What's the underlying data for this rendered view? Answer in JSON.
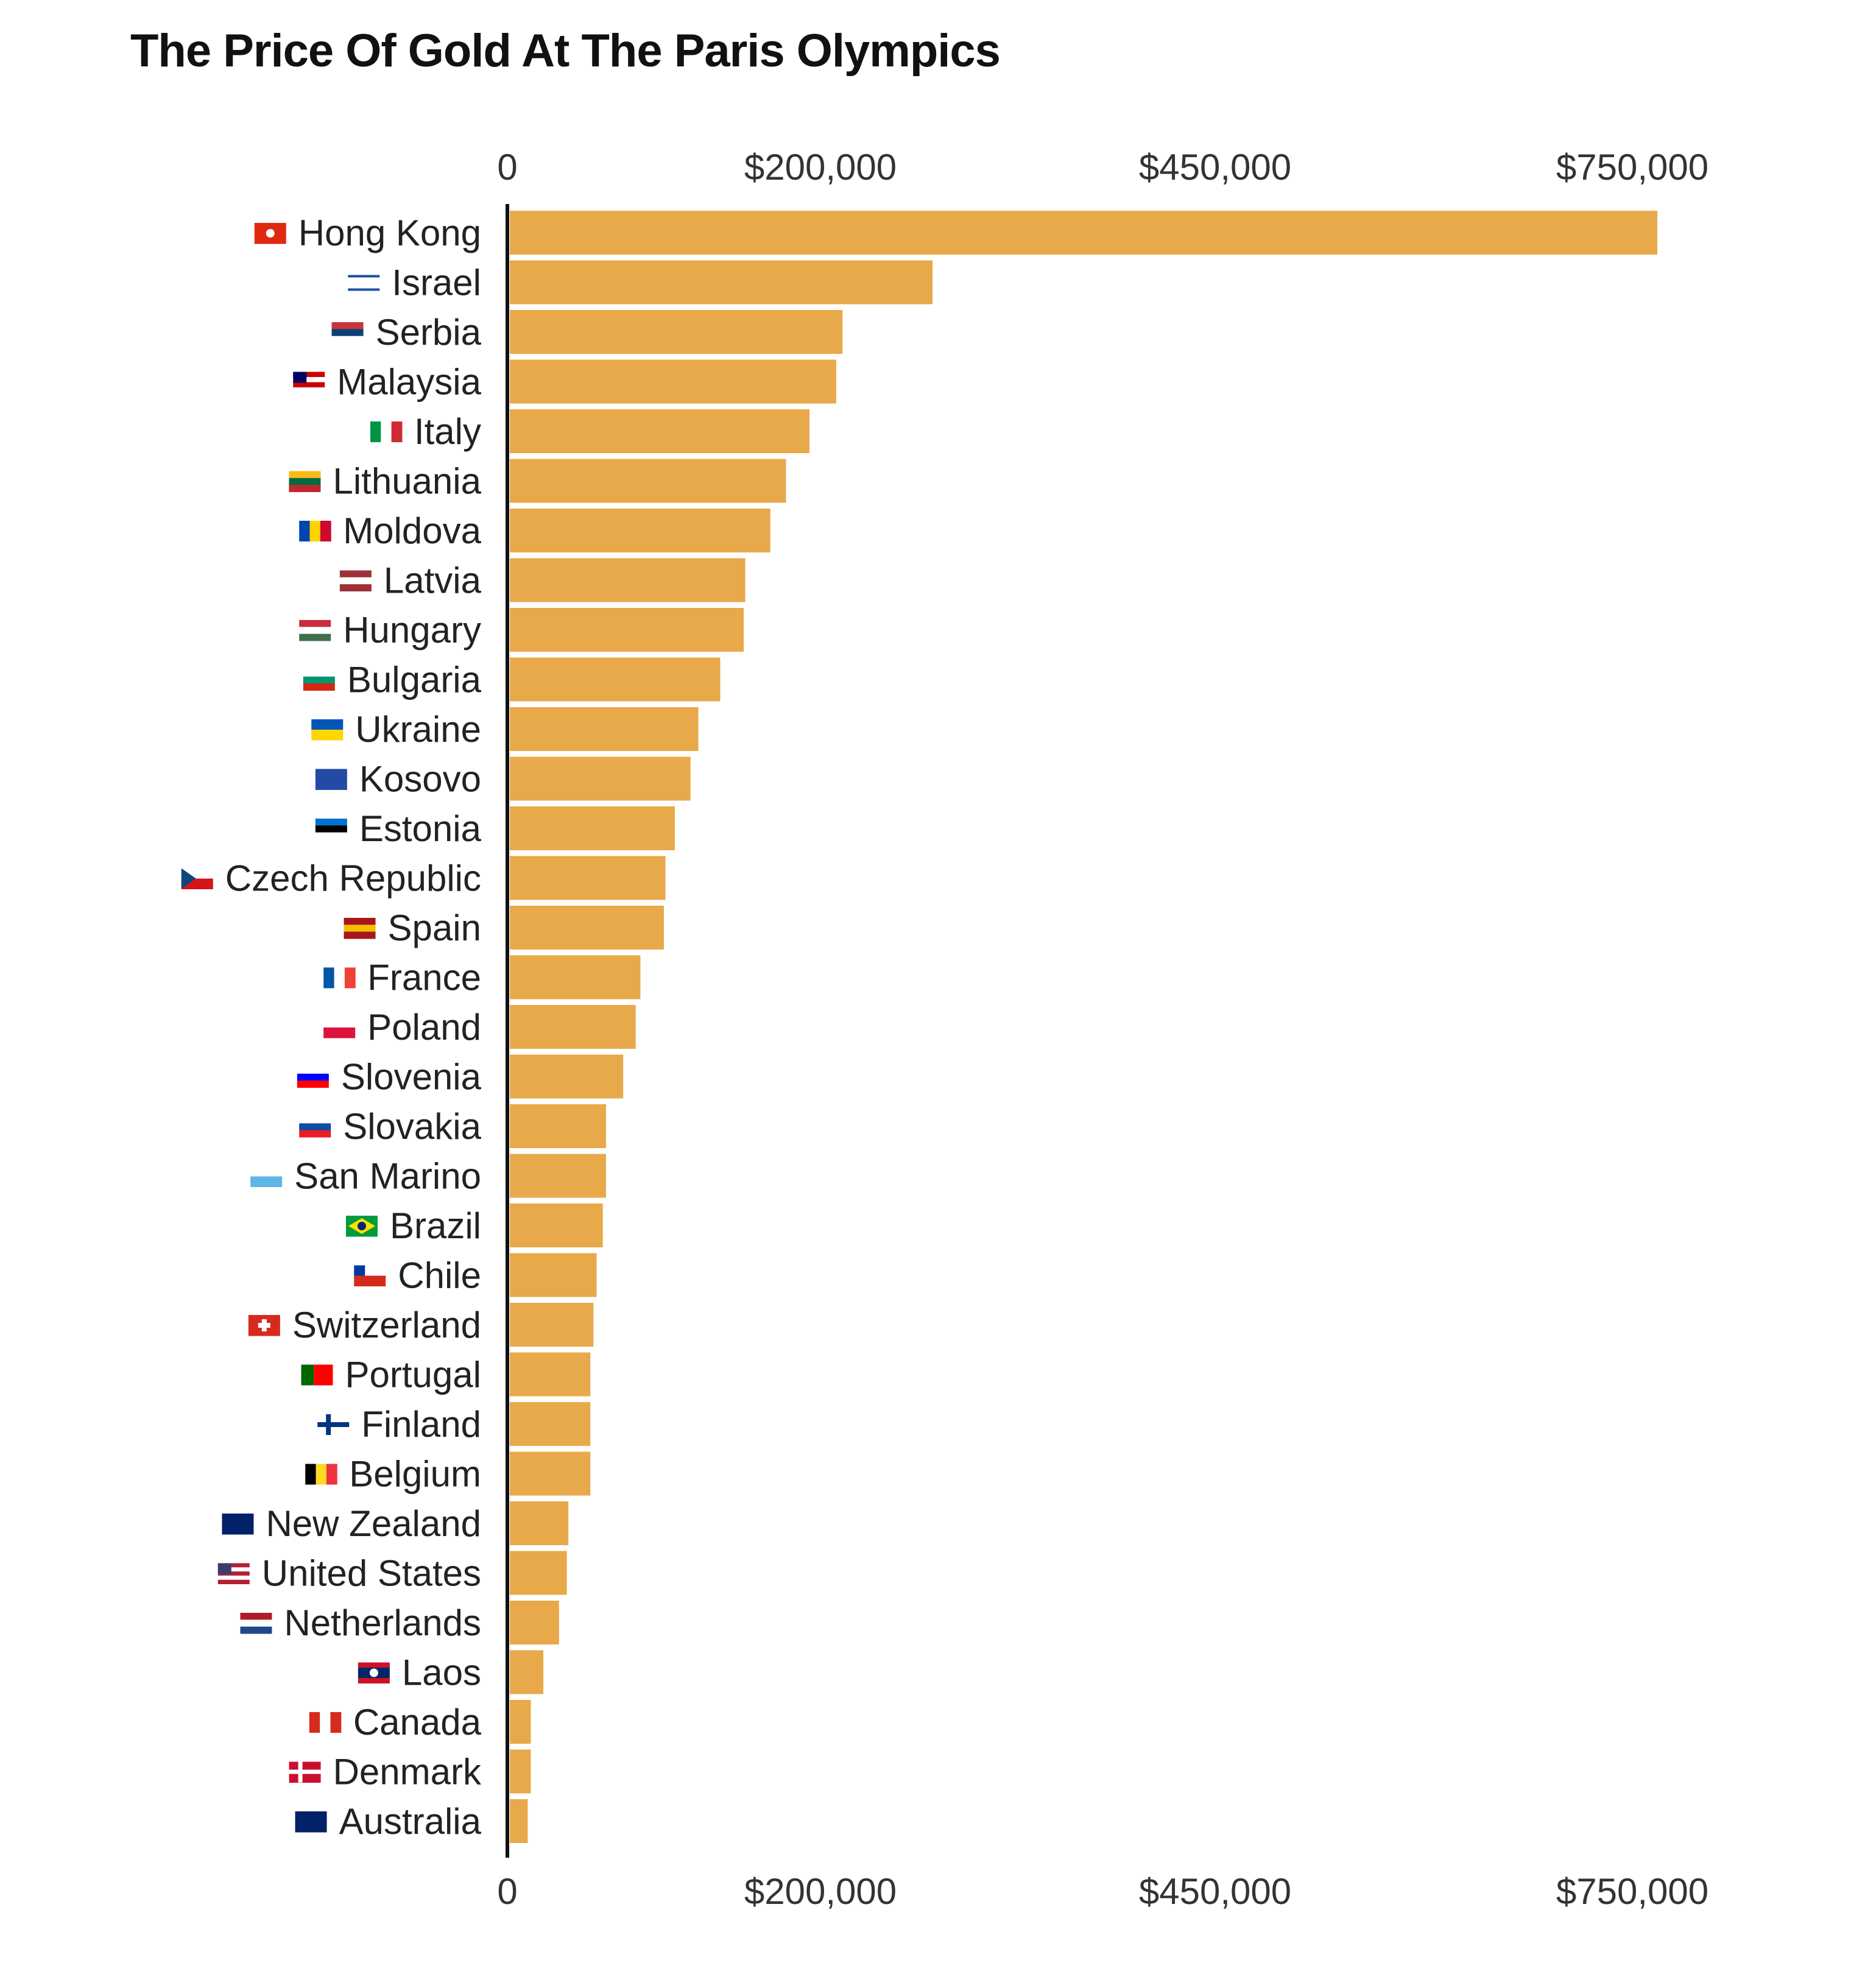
{
  "chart_data": {
    "type": "bar",
    "orientation": "horizontal",
    "title": "The Price Of Gold At The Paris Olympics",
    "xlabel": "",
    "ylabel": "",
    "x_ticks": [
      {
        "label": "0",
        "value": 0
      },
      {
        "label": "$200,000",
        "value": 200000
      },
      {
        "label": "$450,000",
        "value": 450000
      },
      {
        "label": "$750,000",
        "value": 750000
      }
    ],
    "grid": false,
    "bar_color": "#E8A94A",
    "flag_icons": true,
    "categories": [
      "Hong Kong",
      "Israel",
      "Serbia",
      "Malaysia",
      "Italy",
      "Lithuania",
      "Moldova",
      "Latvia",
      "Hungary",
      "Bulgaria",
      "Ukraine",
      "Kosovo",
      "Estonia",
      "Czech Republic",
      "Spain",
      "France",
      "Poland",
      "Slovenia",
      "Slovakia",
      "San Marino",
      "Brazil",
      "Chile",
      "Switzerland",
      "Portugal",
      "Finland",
      "Belgium",
      "New Zealand",
      "United States",
      "Netherlands",
      "Laos",
      "Canada",
      "Denmark",
      "Australia"
    ],
    "values": [
      768000,
      271000,
      214000,
      210000,
      193000,
      178000,
      168000,
      152000,
      151000,
      136000,
      122000,
      117000,
      107000,
      101000,
      100000,
      85000,
      82000,
      74000,
      63000,
      63000,
      61000,
      57000,
      55000,
      53000,
      53000,
      53000,
      39000,
      38000,
      33000,
      23000,
      15000,
      15000,
      13000
    ]
  }
}
